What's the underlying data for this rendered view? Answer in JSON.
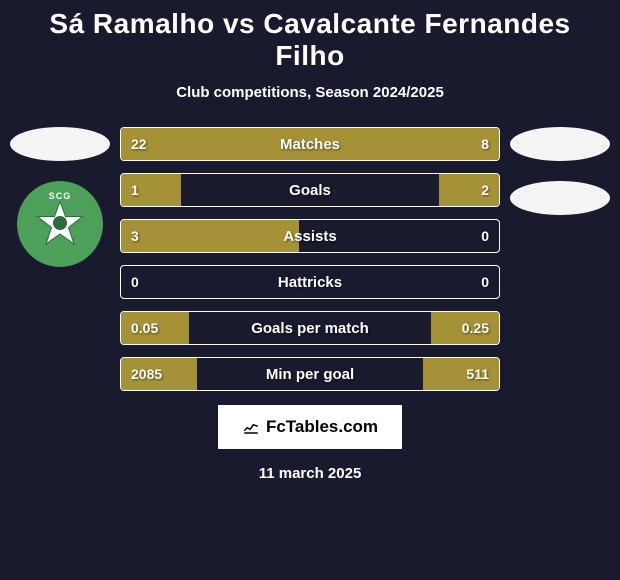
{
  "title": "Sá Ramalho vs Cavalcante Fernandes Filho",
  "subtitle": "Club competitions, Season 2024/2025",
  "bars": [
    {
      "label": "Matches",
      "left_value": "22",
      "right_value": "8",
      "left_pct": 66,
      "right_pct": 34
    },
    {
      "label": "Goals",
      "left_value": "1",
      "right_value": "2",
      "left_pct": 16,
      "right_pct": 16
    },
    {
      "label": "Assists",
      "left_value": "3",
      "right_value": "0",
      "left_pct": 47,
      "right_pct": 0
    },
    {
      "label": "Hattricks",
      "left_value": "0",
      "right_value": "0",
      "left_pct": 0,
      "right_pct": 0
    },
    {
      "label": "Goals per match",
      "left_value": "0.05",
      "right_value": "0.25",
      "left_pct": 18,
      "right_pct": 18
    },
    {
      "label": "Min per goal",
      "left_value": "2085",
      "right_value": "511",
      "left_pct": 20,
      "right_pct": 20
    }
  ],
  "styling": {
    "bar_fill_color": "#a69236",
    "bar_border_color": "#ffffff",
    "background_color": "#1a1a2e",
    "text_color": "#ffffff"
  },
  "left_badge": {
    "circle_color": "#4da05a",
    "badge_text": "SCG"
  },
  "footer": {
    "logo_text": "FcTables.com",
    "date": "11 march 2025"
  }
}
